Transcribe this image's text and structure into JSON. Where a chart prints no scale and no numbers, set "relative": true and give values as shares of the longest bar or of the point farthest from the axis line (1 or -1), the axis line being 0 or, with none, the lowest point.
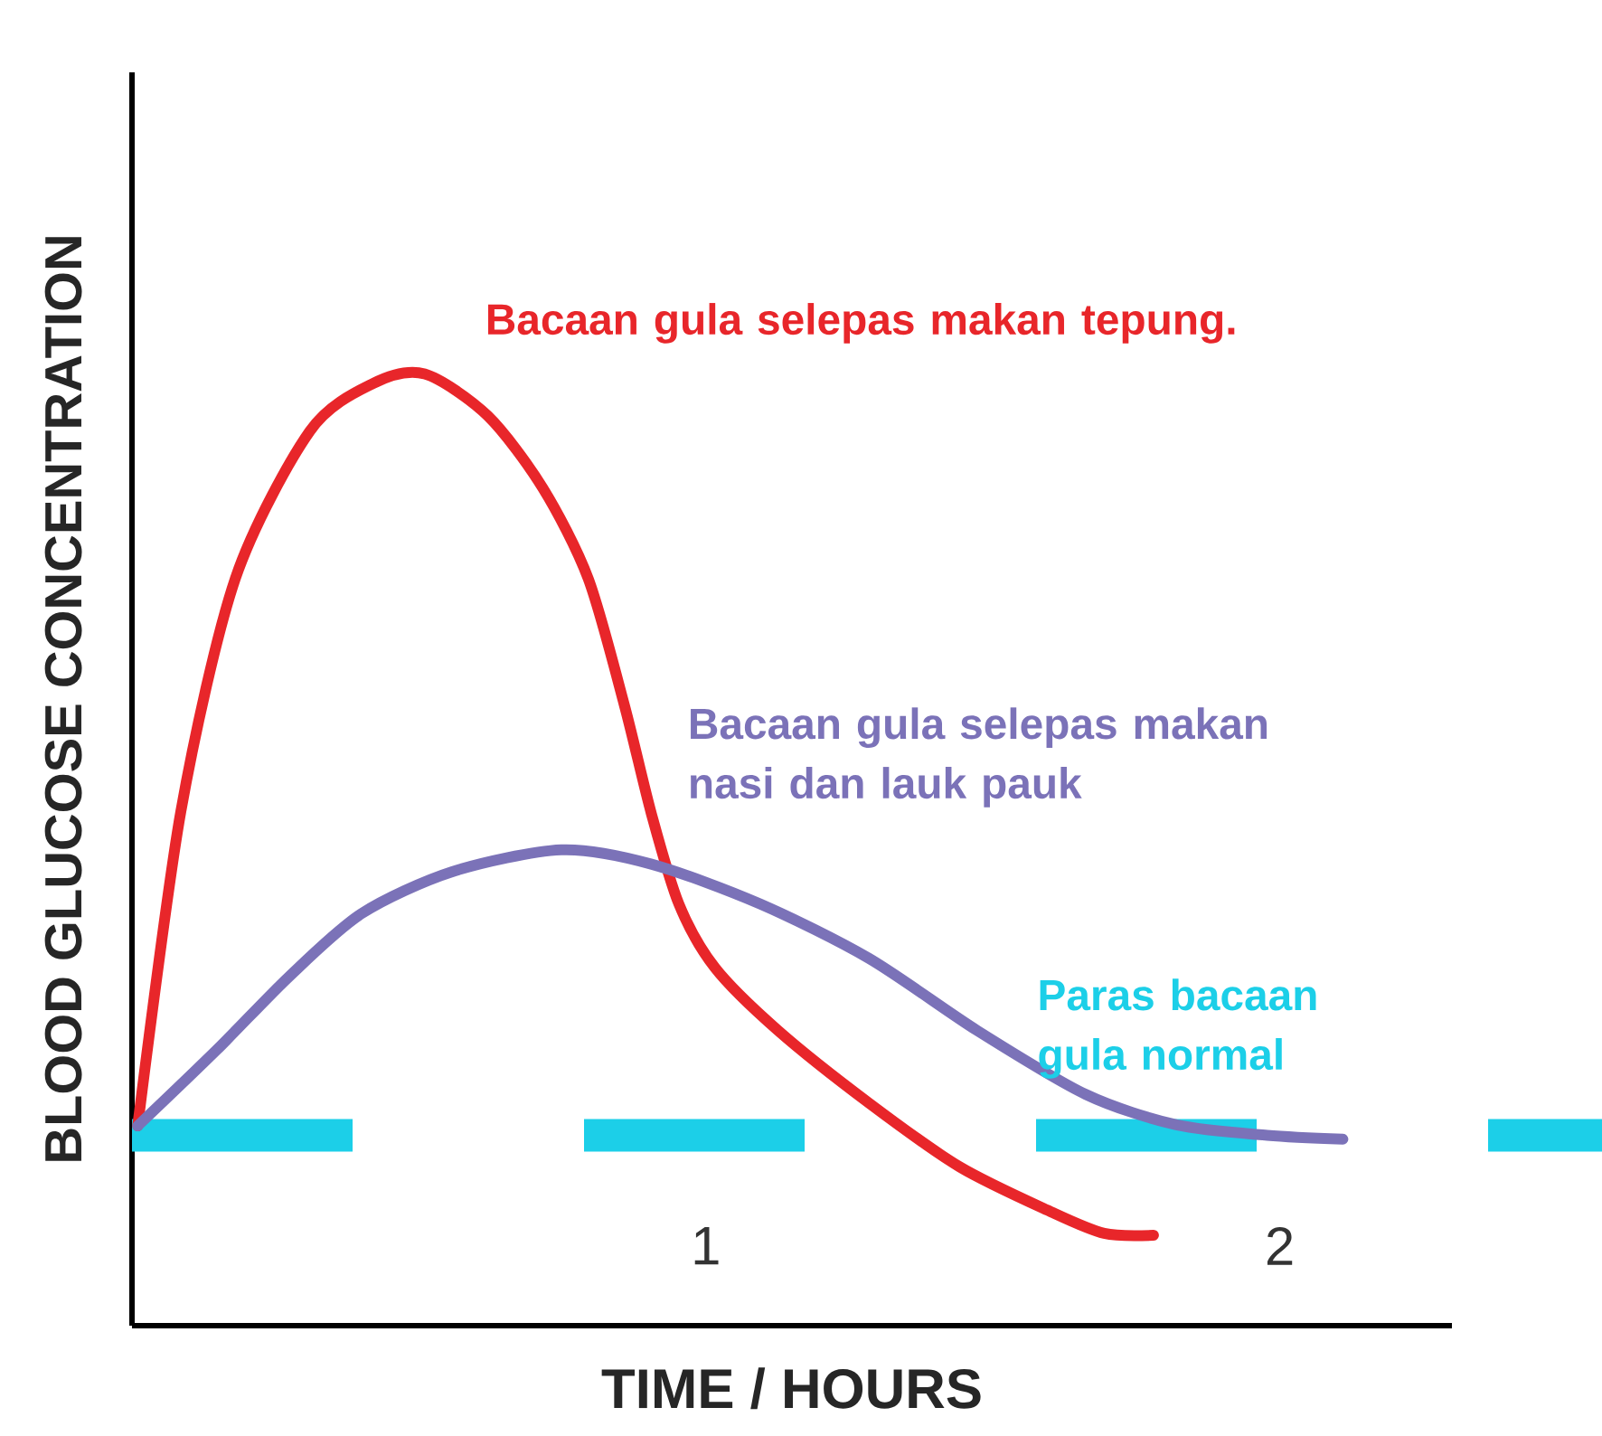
{
  "chart_data": {
    "type": "line",
    "relative": true,
    "xlabel": "TIME / HOURS",
    "ylabel": "BLOOD GLUCOSE CONCENTRATION",
    "xlim": [
      0,
      2.3
    ],
    "xticks": [
      1,
      2
    ],
    "line_style": "solid",
    "marker": "none",
    "series": [
      {
        "name": "Bacaan gula selepas makan tepung.",
        "color": "#e8262a",
        "x": [
          0.01,
          0.085,
          0.18,
          0.31,
          0.42,
          0.51,
          0.62,
          0.716,
          0.795,
          0.858,
          0.905,
          0.953,
          1.016,
          1.126,
          1.284,
          1.442,
          1.6,
          1.694,
          1.78
        ],
        "values": [
          0.21,
          0.54,
          0.785,
          0.94,
          0.99,
          1.0,
          0.956,
          0.88,
          0.785,
          0.652,
          0.538,
          0.443,
          0.376,
          0.31,
          0.234,
          0.167,
          0.12,
          0.097,
          0.095
        ]
      },
      {
        "name": "Bacaan gula selepas makan nasi dan lauk pauk",
        "color": "#7b72b8",
        "x": [
          0.01,
          0.148,
          0.274,
          0.4,
          0.558,
          0.748,
          0.905,
          1.095,
          1.284,
          1.473,
          1.662,
          1.82,
          1.978,
          2.11
        ],
        "values": [
          0.21,
          0.29,
          0.367,
          0.433,
          0.477,
          0.5,
          0.485,
          0.443,
          0.386,
          0.31,
          0.243,
          0.211,
          0.2,
          0.196
        ]
      }
    ],
    "ref_lines": [
      {
        "axis": "y",
        "value": 0.2,
        "label": "Paras bacaan gula normal",
        "color": "#1ccfe8",
        "line_style": "dashed"
      }
    ]
  }
}
